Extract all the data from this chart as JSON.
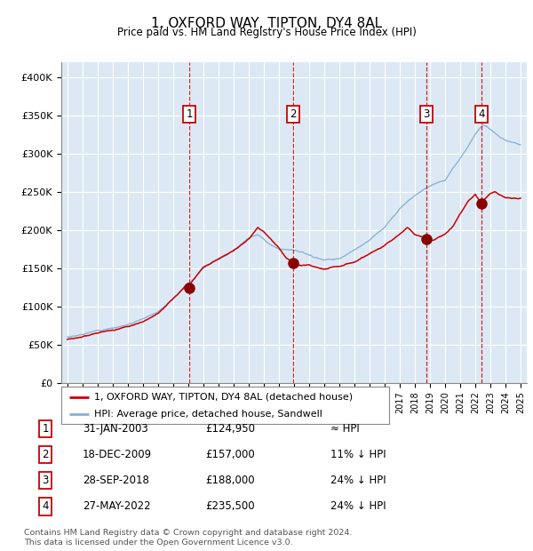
{
  "title": "1, OXFORD WAY, TIPTON, DY4 8AL",
  "subtitle": "Price paid vs. HM Land Registry's House Price Index (HPI)",
  "footer1": "Contains HM Land Registry data © Crown copyright and database right 2024.",
  "footer2": "This data is licensed under the Open Government Licence v3.0.",
  "legend1": "1, OXFORD WAY, TIPTON, DY4 8AL (detached house)",
  "legend2": "HPI: Average price, detached house, Sandwell",
  "sale_labels": [
    "1",
    "2",
    "3",
    "4"
  ],
  "sale_dates_label": [
    "31-JAN-2003",
    "18-DEC-2009",
    "28-SEP-2018",
    "27-MAY-2022"
  ],
  "sale_prices_label": [
    "£124,950",
    "£157,000",
    "£188,000",
    "£235,500"
  ],
  "sale_compare": [
    "≈ HPI",
    "11% ↓ HPI",
    "24% ↓ HPI",
    "24% ↓ HPI"
  ],
  "sale_years": [
    2003.08,
    2009.96,
    2018.74,
    2022.41
  ],
  "sale_prices": [
    124950,
    157000,
    188000,
    235500
  ],
  "bg_color": "#dce9f5",
  "red_line_color": "#cc0000",
  "blue_line_color": "#85afd4",
  "sale_dot_color": "#880000",
  "vline_color": "#cc0000",
  "grid_color": "#ffffff",
  "ylim": [
    0,
    420000
  ],
  "yticks": [
    0,
    50000,
    100000,
    150000,
    200000,
    250000,
    300000,
    350000,
    400000
  ],
  "ytick_labels": [
    "£0",
    "£50K",
    "£100K",
    "£150K",
    "£200K",
    "£250K",
    "£300K",
    "£350K",
    "£400K"
  ],
  "xmin": 1994.6,
  "xmax": 2025.4
}
